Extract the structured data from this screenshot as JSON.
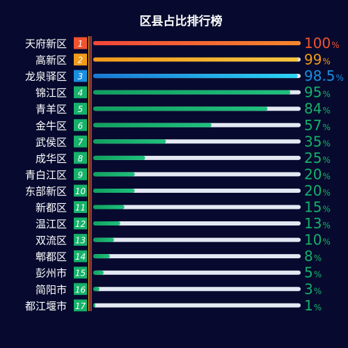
{
  "colors": {
    "background": "#070a2e",
    "track": "#e4e8f2",
    "rank1": "#f2532f",
    "rank2": "#f29a19",
    "rank3": "#1a8fe0",
    "other": "#16b16a",
    "divider_outer": "#f29a19",
    "divider_inner": "#f2532f"
  },
  "chart_data": {
    "type": "bar",
    "orientation": "horizontal",
    "title": "区县占比排行榜",
    "value_suffix": "%",
    "xlim": [
      0,
      100
    ],
    "categories": [
      "天府新区",
      "高新区",
      "龙泉驿区",
      "锦江区",
      "青羊区",
      "金牛区",
      "武侯区",
      "成华区",
      "青白江区",
      "东部新区",
      "新都区",
      "温江区",
      "双流区",
      "郫都区",
      "彭州市",
      "简阳市",
      "都江堰市"
    ],
    "ranks": [
      "1",
      "2",
      "3",
      "4",
      "5",
      "6",
      "7",
      "8",
      "9",
      "10",
      "11",
      "12",
      "13",
      "14",
      "15",
      "16",
      "17"
    ],
    "values": [
      100,
      99,
      98.5,
      95,
      84,
      57,
      35,
      25,
      20,
      20,
      15,
      13,
      10,
      8,
      5,
      3,
      1
    ],
    "value_labels": [
      "100",
      "99",
      "98.5",
      "95",
      "84",
      "57",
      "35",
      "25",
      "20",
      "20",
      "15",
      "13",
      "10",
      "8",
      "5",
      "3",
      "1"
    ]
  }
}
